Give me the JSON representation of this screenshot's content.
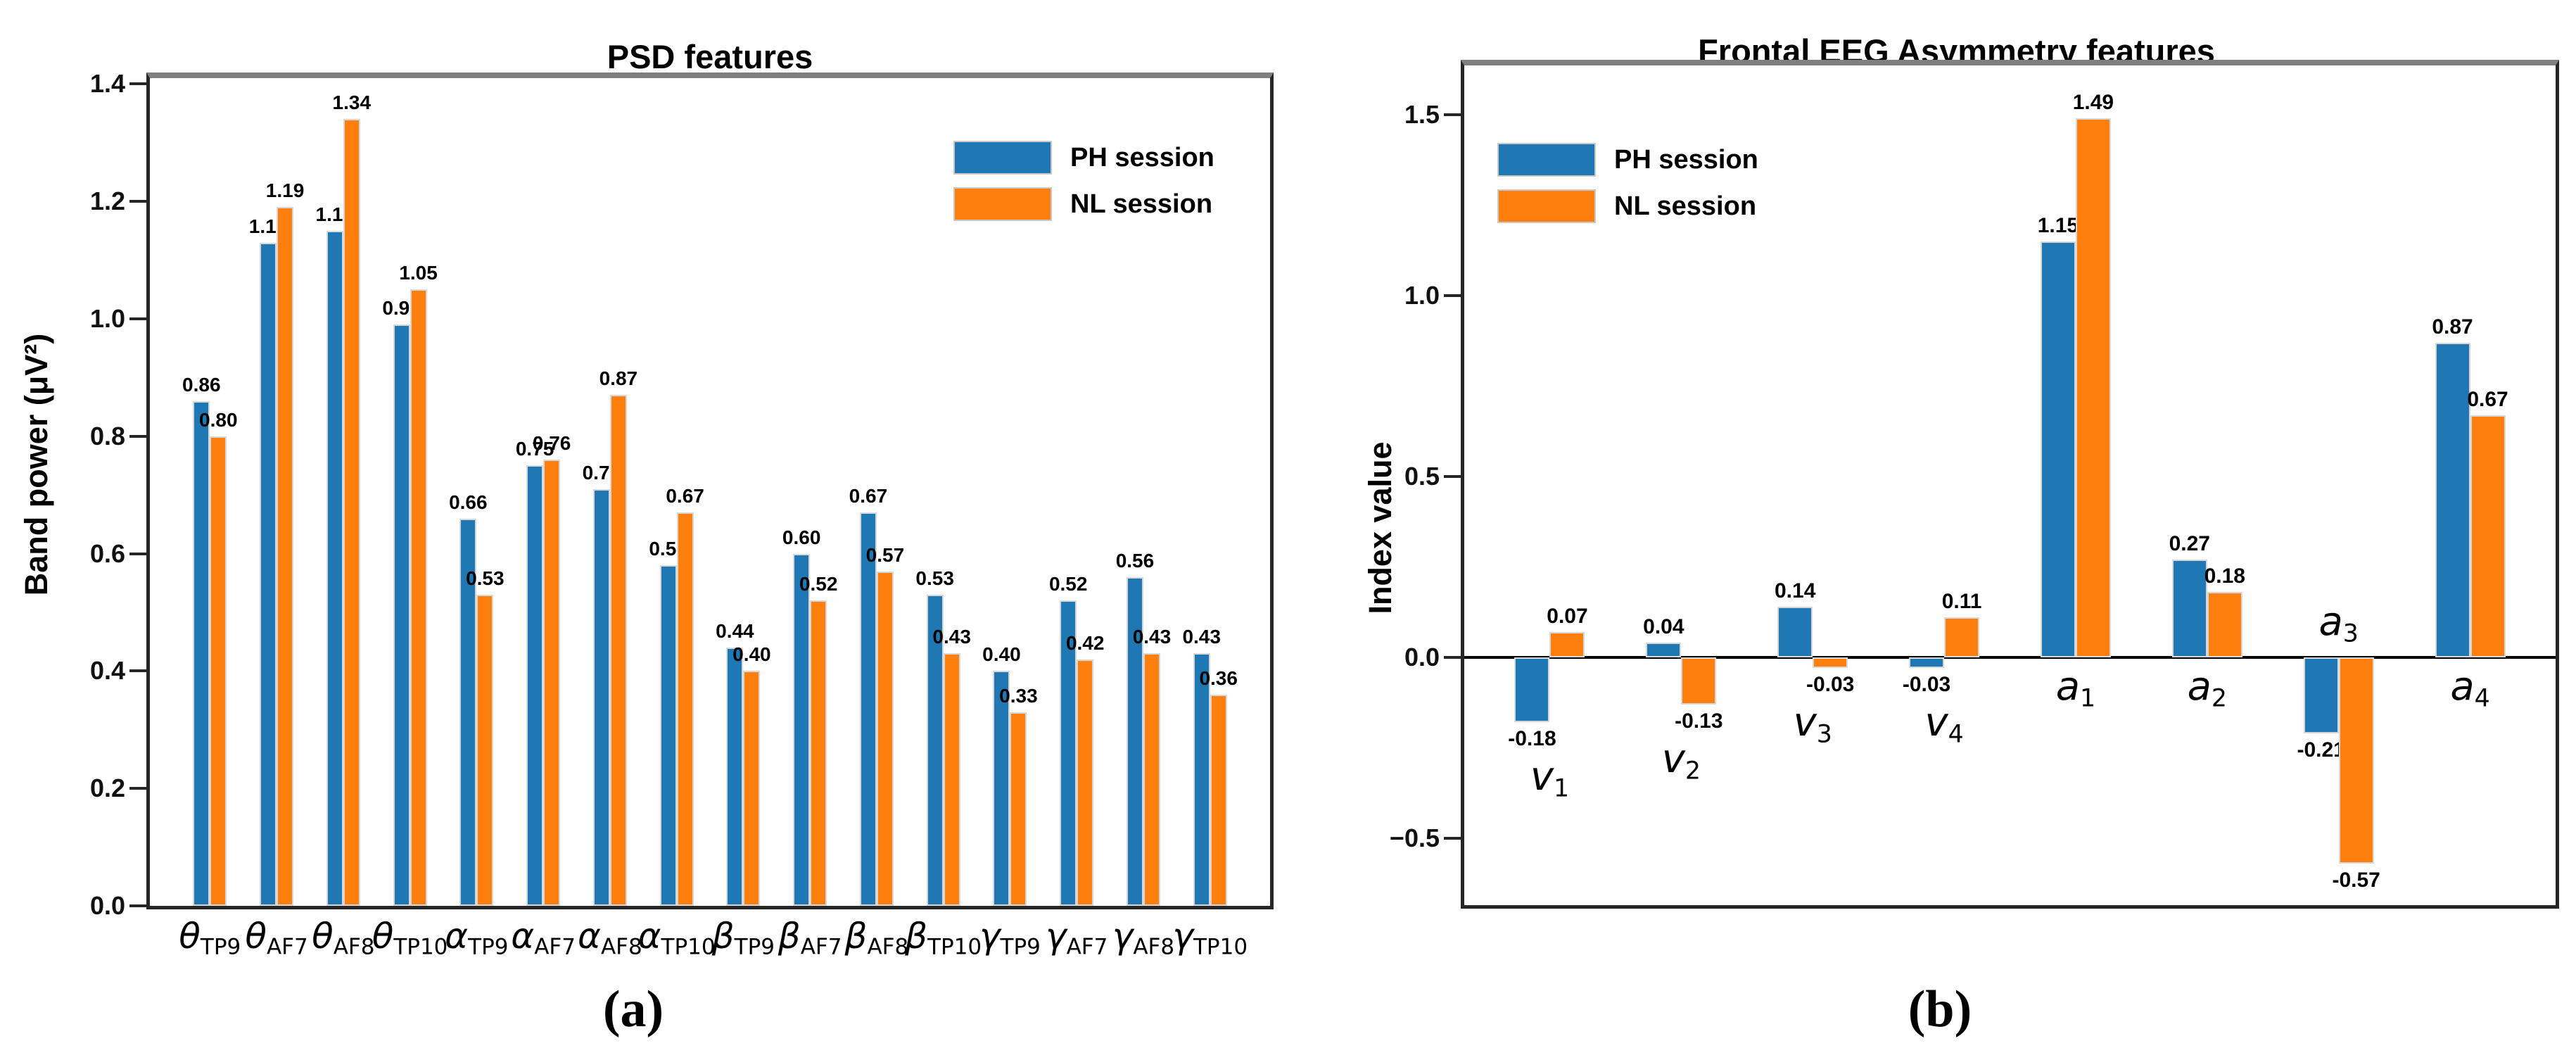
{
  "captions": {
    "a": "(a)",
    "b": "(b)"
  },
  "legend": {
    "items": [
      {
        "label": "PH session",
        "color": "#1f77b4",
        "swatch": "blue-rect"
      },
      {
        "label": "NL session",
        "color": "#ff7f0e",
        "swatch": "orange-rect"
      }
    ]
  },
  "colors": {
    "ph_blue": "#1f77b4",
    "nl_orange": "#ff7f0e",
    "bar_edge": "#d8d8d8",
    "top_spine_gray": "#7f7f7f",
    "spine_dark": "#262626"
  },
  "chart_data": [
    {
      "type": "bar",
      "title": "PSD features",
      "xlabel": "",
      "ylabel": "Band power (μV²)",
      "ylim": [
        0,
        1.41
      ],
      "yticks": [
        0.0,
        0.2,
        0.4,
        0.6,
        0.8,
        1.0,
        1.2,
        1.4
      ],
      "grid": false,
      "legend_position": "upper right",
      "zero_line": false,
      "categories": [
        {
          "base": "θ",
          "sub": "TP9"
        },
        {
          "base": "θ",
          "sub": "AF7"
        },
        {
          "base": "θ",
          "sub": "AF8"
        },
        {
          "base": "θ",
          "sub": "TP10"
        },
        {
          "base": "α",
          "sub": "TP9"
        },
        {
          "base": "α",
          "sub": "AF7"
        },
        {
          "base": "α",
          "sub": "AF8"
        },
        {
          "base": "α",
          "sub": "TP10"
        },
        {
          "base": "β",
          "sub": "TP9"
        },
        {
          "base": "β",
          "sub": "AF7"
        },
        {
          "base": "β",
          "sub": "AF8"
        },
        {
          "base": "β",
          "sub": "TP10"
        },
        {
          "base": "γ",
          "sub": "TP9"
        },
        {
          "base": "γ",
          "sub": "AF7"
        },
        {
          "base": "γ",
          "sub": "AF8"
        },
        {
          "base": "γ",
          "sub": "TP10"
        }
      ],
      "series": [
        {
          "name": "PH session",
          "color": "#1f77b4",
          "values": [
            0.86,
            1.13,
            1.15,
            0.99,
            0.66,
            0.75,
            0.71,
            0.58,
            0.44,
            0.6,
            0.67,
            0.53,
            0.4,
            0.52,
            0.56,
            0.43
          ]
        },
        {
          "name": "NL session",
          "color": "#ff7f0e",
          "values": [
            0.8,
            1.19,
            1.34,
            1.05,
            0.53,
            0.76,
            0.87,
            0.67,
            0.4,
            0.52,
            0.57,
            0.43,
            0.33,
            0.42,
            0.43,
            0.36
          ]
        }
      ]
    },
    {
      "type": "bar",
      "title": "Frontal EEG Asymmetry features",
      "xlabel": "",
      "ylabel": "Index value",
      "ylim": [
        -0.685,
        1.636
      ],
      "yticks": [
        -0.5,
        0.0,
        0.5,
        1.0,
        1.5
      ],
      "grid": false,
      "legend_position": "upper left",
      "zero_line": true,
      "categories": [
        {
          "base": "v",
          "sub": "1",
          "label_side": "below"
        },
        {
          "base": "v",
          "sub": "2",
          "label_side": "below"
        },
        {
          "base": "v",
          "sub": "3",
          "label_side": "below"
        },
        {
          "base": "v",
          "sub": "4",
          "label_side": "below"
        },
        {
          "base": "a",
          "sub": "1",
          "label_side": "below"
        },
        {
          "base": "a",
          "sub": "2",
          "label_side": "below"
        },
        {
          "base": "a",
          "sub": "3",
          "label_side": "above"
        },
        {
          "base": "a",
          "sub": "4",
          "label_side": "below"
        }
      ],
      "series": [
        {
          "name": "PH session",
          "color": "#1f77b4",
          "values": [
            -0.18,
            0.04,
            0.14,
            -0.03,
            1.15,
            0.27,
            -0.21,
            0.87
          ]
        },
        {
          "name": "NL session",
          "color": "#ff7f0e",
          "values": [
            0.07,
            -0.13,
            -0.03,
            0.11,
            1.49,
            0.18,
            -0.57,
            0.67
          ]
        }
      ]
    }
  ]
}
